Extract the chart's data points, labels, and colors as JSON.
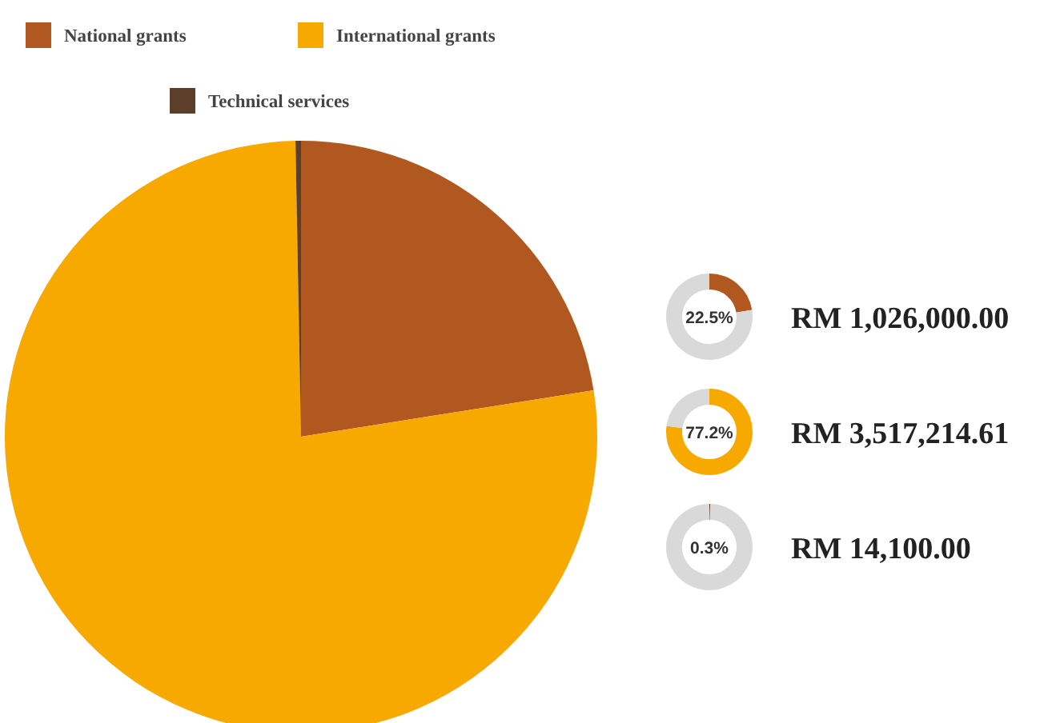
{
  "chart_data": [
    {
      "type": "pie",
      "categories": [
        "National grants",
        "International grants",
        "Technical services"
      ],
      "values": [
        22.5,
        77.2,
        0.3
      ],
      "colors": [
        "#b0581f",
        "#f7a900",
        "#5b3f2a"
      ],
      "legend": "top"
    },
    {
      "type": "donut",
      "categories": [
        null,
        null
      ],
      "values": [
        22.5,
        77.5
      ],
      "colors": [
        "#b0581f",
        "#d9d9d9"
      ],
      "annotations": [
        "22.5%",
        "RM 1,026,000.00"
      ]
    },
    {
      "type": "donut",
      "categories": [
        null,
        null
      ],
      "values": [
        77.2,
        22.8
      ],
      "colors": [
        "#f7a900",
        "#d9d9d9"
      ],
      "annotations": [
        "77.2%",
        "RM 3,517,214.61"
      ]
    },
    {
      "type": "donut",
      "categories": [
        null,
        null
      ],
      "values": [
        0.3,
        99.7
      ],
      "colors": [
        "#5b3f2a",
        "#d9d9d9"
      ],
      "annotations": [
        "0.3%",
        "RM 14,100.00"
      ]
    }
  ]
}
